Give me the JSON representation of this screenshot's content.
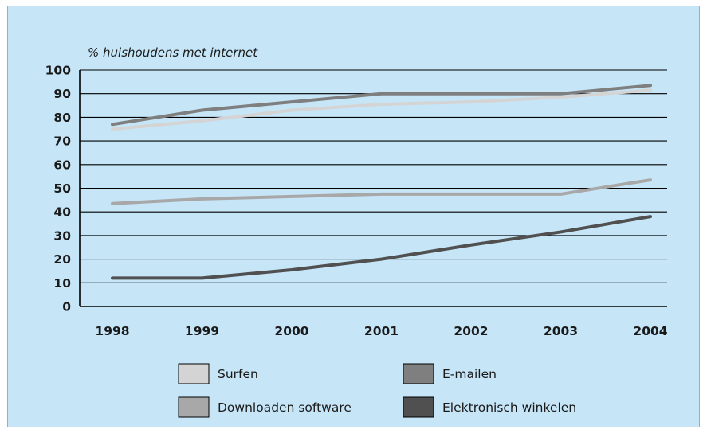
{
  "chart_data": {
    "type": "line",
    "ylabel": "% huishoudens met internet",
    "x": [
      "1998",
      "1999",
      "2000",
      "2001",
      "2002",
      "2003",
      "2004"
    ],
    "ylim": [
      0,
      100
    ],
    "yticks": [
      0,
      10,
      20,
      30,
      40,
      50,
      60,
      70,
      80,
      90,
      100
    ],
    "grid": "horizontal",
    "legend_position": "bottom",
    "series": [
      {
        "name": "Surfen",
        "color": "#d4d4d4",
        "values": [
          75,
          78.5,
          83,
          85.5,
          86.5,
          88.5,
          91.5
        ]
      },
      {
        "name": "E-mailen",
        "color": "#7f7f7f",
        "values": [
          77,
          83,
          86.5,
          90,
          90,
          90,
          93.5
        ]
      },
      {
        "name": "Downloaden software",
        "color": "#a8a8a8",
        "values": [
          43.5,
          45.5,
          46.5,
          47.5,
          47.5,
          47.5,
          53.5
        ]
      },
      {
        "name": "Elektronisch winkelen",
        "color": "#505050",
        "values": [
          12,
          12,
          15.5,
          20,
          26,
          31.5,
          38
        ]
      }
    ]
  }
}
